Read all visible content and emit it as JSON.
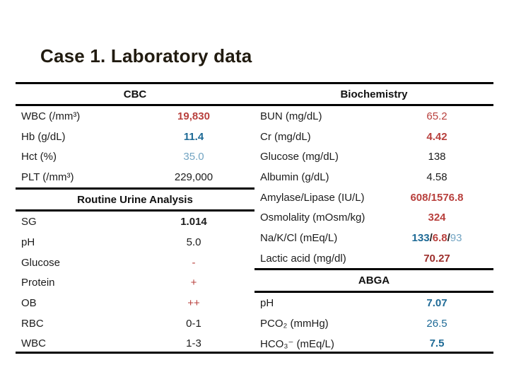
{
  "title": "Case 1. Laboratory data",
  "colors": {
    "background": "#ffffff",
    "title_text": "#211b10",
    "line": "#000000",
    "label_text": "#1c1c1c",
    "red": "#b8403d",
    "dark_red": "#9d2f2c",
    "blue": "#1e6a96",
    "light_blue": "#72a4c2",
    "black": "#1c1c1c"
  },
  "left_table": {
    "header": "CBC",
    "rows": [
      {
        "type": "data",
        "label": "WBC (/mm³)",
        "value": [
          {
            "t": "19,830",
            "c": "red",
            "b": true
          }
        ]
      },
      {
        "type": "data",
        "label": "Hb (g/dL)",
        "value": [
          {
            "t": "11.4",
            "c": "blue",
            "b": true
          }
        ]
      },
      {
        "type": "data",
        "label": "Hct (%)",
        "value": [
          {
            "t": "35.0",
            "c": "light_blue",
            "b": false
          }
        ]
      },
      {
        "type": "data",
        "label": "PLT (/mm³)",
        "value": [
          {
            "t": "229,000",
            "c": "black",
            "b": false
          }
        ]
      },
      {
        "type": "section",
        "label": "Routine Urine Analysis"
      },
      {
        "type": "data",
        "label": "SG",
        "value": [
          {
            "t": "1.014",
            "c": "black",
            "b": true
          }
        ]
      },
      {
        "type": "data",
        "label": "pH",
        "value": [
          {
            "t": "5.0",
            "c": "black",
            "b": false
          }
        ]
      },
      {
        "type": "data",
        "label": "Glucose",
        "value": [
          {
            "t": "-",
            "c": "red",
            "b": false
          }
        ]
      },
      {
        "type": "data",
        "label": "Protein",
        "value": [
          {
            "t": "+",
            "c": "red",
            "b": false
          }
        ]
      },
      {
        "type": "data",
        "label": "OB",
        "value": [
          {
            "t": "++",
            "c": "red",
            "b": false
          }
        ]
      },
      {
        "type": "data",
        "label": "RBC",
        "value": [
          {
            "t": "0-1",
            "c": "black",
            "b": false
          }
        ]
      },
      {
        "type": "data",
        "label": "WBC",
        "value": [
          {
            "t": "1-3",
            "c": "black",
            "b": false
          }
        ]
      }
    ]
  },
  "right_table": {
    "header": "Biochemistry",
    "rows": [
      {
        "type": "data",
        "label": "BUN (mg/dL)",
        "value": [
          {
            "t": "65.2",
            "c": "red",
            "b": false
          }
        ]
      },
      {
        "type": "data",
        "label": "Cr (mg/dL)",
        "value": [
          {
            "t": "4.42",
            "c": "red",
            "b": true
          }
        ]
      },
      {
        "type": "data",
        "label": "Glucose (mg/dL)",
        "value": [
          {
            "t": "138",
            "c": "black",
            "b": false
          }
        ]
      },
      {
        "type": "data",
        "label": "Albumin (g/dL)",
        "value": [
          {
            "t": "4.58",
            "c": "black",
            "b": false
          }
        ]
      },
      {
        "type": "data",
        "label": "Amylase/Lipase (IU/L)",
        "value": [
          {
            "t": "608/1576.8",
            "c": "red",
            "b": true
          }
        ]
      },
      {
        "type": "data",
        "label": "Osmolality (mOsm/kg)",
        "value": [
          {
            "t": "324",
            "c": "red",
            "b": true
          }
        ]
      },
      {
        "type": "data",
        "label": "Na/K/Cl (mEq/L)",
        "value": [
          {
            "t": "133",
            "c": "blue",
            "b": true
          },
          {
            "t": "/",
            "c": "black",
            "b": true
          },
          {
            "t": "6.8",
            "c": "red",
            "b": true
          },
          {
            "t": "/",
            "c": "black",
            "b": true
          },
          {
            "t": "93",
            "c": "light_blue",
            "b": false
          }
        ]
      },
      {
        "type": "data",
        "label": "Lactic acid (mg/dl)",
        "value": [
          {
            "t": "70.27",
            "c": "dark_red",
            "b": true
          }
        ]
      },
      {
        "type": "section",
        "label": "ABGA"
      },
      {
        "type": "data",
        "label": "pH",
        "value": [
          {
            "t": "7.07",
            "c": "blue",
            "b": true
          }
        ]
      },
      {
        "type": "data",
        "label": "PCO₂ (mmHg)",
        "value": [
          {
            "t": "26.5",
            "c": "blue",
            "b": false
          }
        ]
      },
      {
        "type": "data",
        "label": "HCO₃⁻ (mEq/L)",
        "value": [
          {
            "t": "7.5",
            "c": "blue",
            "b": true
          }
        ]
      }
    ]
  }
}
